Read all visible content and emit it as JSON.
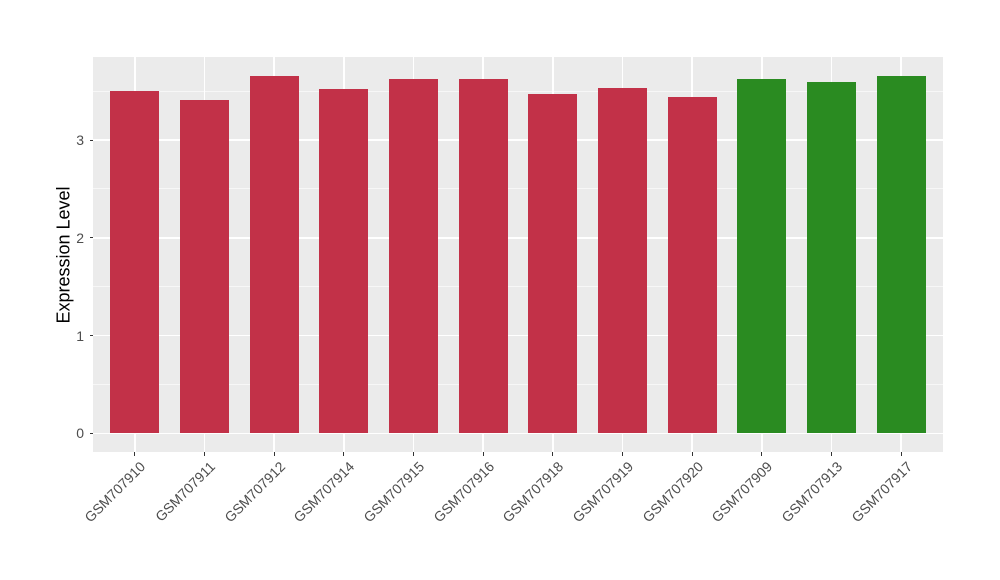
{
  "chart_data": {
    "type": "bar",
    "ylabel": "Expression Level",
    "xlabel": "",
    "categories": [
      "GSM707910",
      "GSM707911",
      "GSM707912",
      "GSM707914",
      "GSM707915",
      "GSM707916",
      "GSM707918",
      "GSM707919",
      "GSM707920",
      "GSM707909",
      "GSM707913",
      "GSM707917"
    ],
    "values": [
      3.5,
      3.41,
      3.66,
      3.52,
      3.63,
      3.63,
      3.47,
      3.53,
      3.44,
      3.62,
      3.59,
      3.66
    ],
    "groups": [
      "crimson",
      "crimson",
      "crimson",
      "crimson",
      "crimson",
      "crimson",
      "crimson",
      "crimson",
      "crimson",
      "green",
      "green",
      "green"
    ],
    "group_colors": {
      "crimson": "#C23148",
      "green": "#2A8B21"
    },
    "yticks": [
      0,
      1,
      2,
      3
    ],
    "yticks_minor": [
      0.5,
      1.5,
      2.5,
      3.5
    ],
    "ylim": [
      -0.19,
      3.85
    ],
    "grid": true,
    "legend": false,
    "panel_background": "#EBEBEB",
    "grid_color": "#FFFFFF",
    "tick_color": "#333333",
    "axis_text_color": "#4D4D4D",
    "axis_title_color": "#000000"
  }
}
